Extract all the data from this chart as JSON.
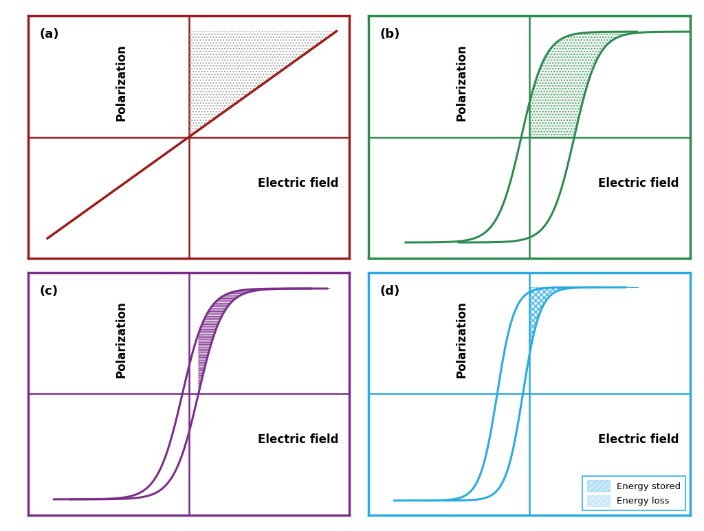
{
  "panel_a": {
    "color": "#9B1B1B",
    "label": "(a)",
    "polarization_label": "Polarization",
    "efield_label": "Electric field"
  },
  "panel_b": {
    "color": "#2D8A4E",
    "label": "(b)",
    "polarization_label": "Polarization",
    "efield_label": "Electric field"
  },
  "panel_c": {
    "color": "#7B2D8B",
    "label": "(c)",
    "polarization_label": "Polarization",
    "efield_label": "Electric field"
  },
  "panel_d": {
    "color": "#29ABE2",
    "label": "(d)",
    "polarization_label": "Polarization",
    "efield_label": "Electric field",
    "legend_stored": "Energy stored",
    "legend_loss": "Energy loss"
  },
  "bg_color": "#ffffff",
  "border_linewidth": 2.5,
  "axis_linewidth": 1.8,
  "curve_linewidth": 2.2,
  "label_fontsize": 12,
  "tag_fontsize": 13
}
